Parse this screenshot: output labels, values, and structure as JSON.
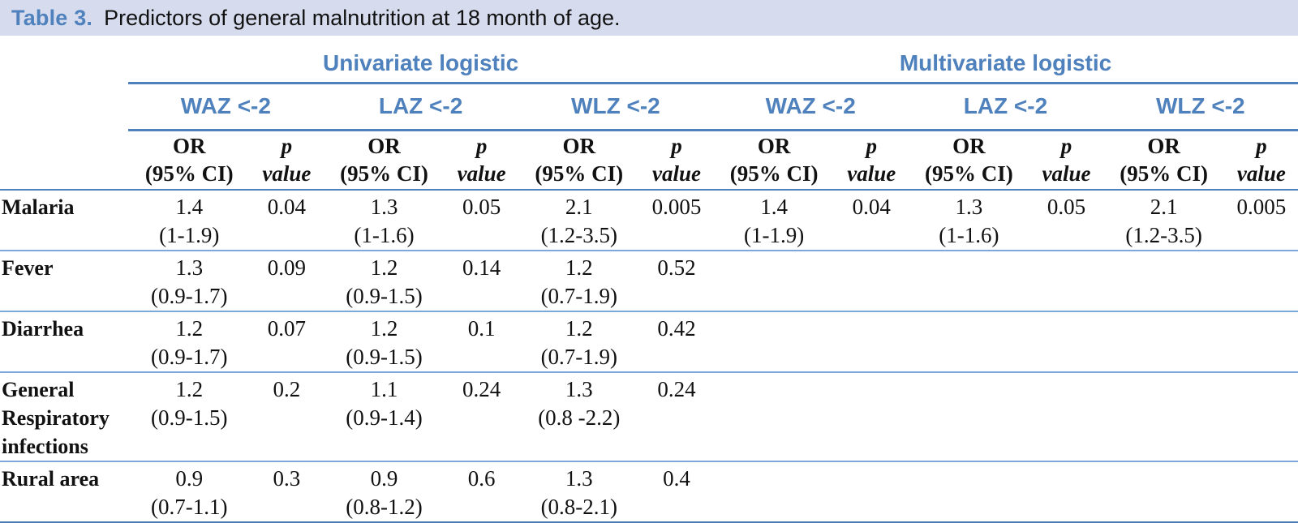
{
  "caption": {
    "label": "Table 3.",
    "text": "Predictors of general malnutrition at 18 month of age."
  },
  "colors": {
    "accent_blue": "#4f81bd",
    "row_line_blue": "#7da7d9",
    "caption_background": "#d6dcee"
  },
  "table": {
    "group_headers": [
      "Univariate logistic",
      "Multivariate logistic"
    ],
    "outcome_headers": [
      "WAZ <-2",
      "LAZ <-2",
      "WLZ <-2",
      "WAZ <-2",
      "LAZ <-2",
      "WLZ <-2"
    ],
    "measure": {
      "or_line1": "OR",
      "or_line2": "(95% CI)",
      "p_line1": "p",
      "p_line2": "value"
    },
    "rows": [
      {
        "label": "Malaria",
        "cells": [
          {
            "or": "1.4",
            "ci": "(1-1.9)",
            "p": "0.04"
          },
          {
            "or": "1.3",
            "ci": "(1-1.6)",
            "p": "0.05"
          },
          {
            "or": "2.1",
            "ci": "(1.2-3.5)",
            "p": "0.005"
          },
          {
            "or": "1.4",
            "ci": "(1-1.9)",
            "p": "0.04"
          },
          {
            "or": "1.3",
            "ci": "(1-1.6)",
            "p": "0.05"
          },
          {
            "or": "2.1",
            "ci": "(1.2-3.5)",
            "p": "0.005"
          }
        ]
      },
      {
        "label": "Fever",
        "cells": [
          {
            "or": "1.3",
            "ci": "(0.9-1.7)",
            "p": "0.09"
          },
          {
            "or": "1.2",
            "ci": "(0.9-1.5)",
            "p": "0.14"
          },
          {
            "or": "1.2",
            "ci": "(0.7-1.9)",
            "p": "0.52"
          },
          {
            "or": "",
            "ci": "",
            "p": ""
          },
          {
            "or": "",
            "ci": "",
            "p": ""
          },
          {
            "or": "",
            "ci": "",
            "p": ""
          }
        ]
      },
      {
        "label": "Diarrhea",
        "cells": [
          {
            "or": "1.2",
            "ci": "(0.9-1.7)",
            "p": "0.07"
          },
          {
            "or": "1.2",
            "ci": "(0.9-1.5)",
            "p": "0.1"
          },
          {
            "or": "1.2",
            "ci": "(0.7-1.9)",
            "p": "0.42"
          },
          {
            "or": "",
            "ci": "",
            "p": ""
          },
          {
            "or": "",
            "ci": "",
            "p": ""
          },
          {
            "or": "",
            "ci": "",
            "p": ""
          }
        ]
      },
      {
        "label": "General Respiratory infections",
        "cells": [
          {
            "or": "1.2",
            "ci": "(0.9-1.5)",
            "p": "0.2"
          },
          {
            "or": "1.1",
            "ci": "(0.9-1.4)",
            "p": "0.24"
          },
          {
            "or": "1.3",
            "ci": "(0.8 -2.2)",
            "p": "0.24"
          },
          {
            "or": "",
            "ci": "",
            "p": ""
          },
          {
            "or": "",
            "ci": "",
            "p": ""
          },
          {
            "or": "",
            "ci": "",
            "p": ""
          }
        ]
      },
      {
        "label": "Rural area",
        "cells": [
          {
            "or": "0.9",
            "ci": "(0.7-1.1)",
            "p": "0.3"
          },
          {
            "or": "0.9",
            "ci": "(0.8-1.2)",
            "p": "0.6"
          },
          {
            "or": "1.3",
            "ci": "(0.8-2.1)",
            "p": "0.4"
          },
          {
            "or": "",
            "ci": "",
            "p": ""
          },
          {
            "or": "",
            "ci": "",
            "p": ""
          },
          {
            "or": "",
            "ci": "",
            "p": ""
          }
        ]
      }
    ]
  }
}
